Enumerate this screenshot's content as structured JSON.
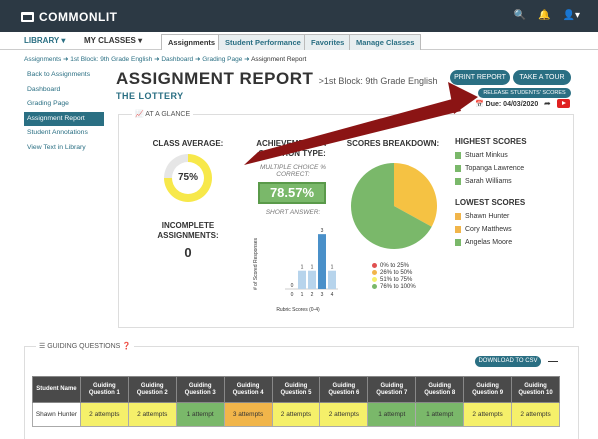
{
  "app": {
    "logo": "COMMONLIT"
  },
  "nav": {
    "library": "LIBRARY ▾",
    "my_classes": "MY CLASSES ▾",
    "tabs": [
      "Assignments",
      "Student Performance",
      "Favorites",
      "Manage Classes"
    ]
  },
  "breadcrumb": [
    "Assignments",
    "1st Block: 9th Grade English",
    "Dashboard",
    "Grading Page",
    "Assignment Report"
  ],
  "sidebar": [
    "Back to Assignments",
    "Dashboard",
    "Grading Page",
    "Assignment Report",
    "Student Annotations",
    "View Text in Library"
  ],
  "header": {
    "title": "ASSIGNMENT REPORT",
    "subtitle": ">1st Block: 9th Grade English",
    "text_title": "THE LOTTERY",
    "print_report": "PRINT REPORT",
    "take_tour": "TAKE A TOUR",
    "release_scores": "RELEASE STUDENTS' SCORES",
    "due": "Due: 04/03/2020"
  },
  "glance": {
    "label": "AT A GLANCE",
    "class_average_h": "CLASS AVERAGE:",
    "class_average": "75%",
    "class_average_fraction": 0.75,
    "incomplete_h": "INCOMPLETE ASSIGNMENTS:",
    "incomplete": "0",
    "achievement_h": "ACHIEVEMENT BY QUESTION TYPE:",
    "mc_label": "MULTIPLE CHOICE % CORRECT:",
    "mc_value": "78.57%",
    "sa_label": "SHORT ANSWER:",
    "breakdown_h": "SCORES BREAKDOWN:",
    "highest_h": "HIGHEST SCORES",
    "highest": [
      "Stuart Minkus",
      "Topanga Lawrence",
      "Sarah Williams"
    ],
    "lowest_h": "LOWEST SCORES",
    "lowest": [
      "Shawn Hunter",
      "Cory Matthews",
      "Angelas Moore"
    ]
  },
  "chart_data": [
    {
      "type": "bar",
      "categories": [
        "0",
        "1",
        "2",
        "3",
        "4"
      ],
      "values": [
        0,
        1,
        1,
        3,
        1
      ],
      "xlabel": "Rubric Scores (0-4)",
      "ylabel": "# of Scored Responses",
      "ylim": [
        0,
        3.5
      ]
    },
    {
      "type": "pie",
      "categories": [
        "0% to 25%",
        "26% to 50%",
        "51% to 75%",
        "76% to 100%"
      ],
      "values": [
        0,
        0,
        33,
        67
      ],
      "colors": [
        "#e05050",
        "#f1b54a",
        "#f5f06a",
        "#7ab86a"
      ]
    }
  ],
  "guiding": {
    "label": "GUIDING QUESTIONS",
    "csv": "DOWNLOAD TO CSV",
    "headers": [
      "Student Name",
      "Guiding Question 1",
      "Guiding Question 2",
      "Guiding Question 3",
      "Guiding Question 4",
      "Guiding Question 5",
      "Guiding Question 6",
      "Guiding Question 7",
      "Guiding Question 8",
      "Guiding Question 9",
      "Guiding Question 10"
    ],
    "rows": [
      [
        "Shawn Hunter",
        "2 attempts",
        "2 attempts",
        "1 attempt",
        "3 attempts",
        "2 attempts",
        "2 attempts",
        "1 attempt",
        "1 attempt",
        "2 attempts",
        "2 attempts"
      ]
    ],
    "row_colors": [
      [
        "",
        "y",
        "y",
        "g",
        "o",
        "y",
        "y",
        "g",
        "g",
        "y",
        "y"
      ]
    ]
  },
  "colors": {
    "brand": "#2c3944",
    "accent": "#2a6f83",
    "arrow": "#8b1414"
  }
}
